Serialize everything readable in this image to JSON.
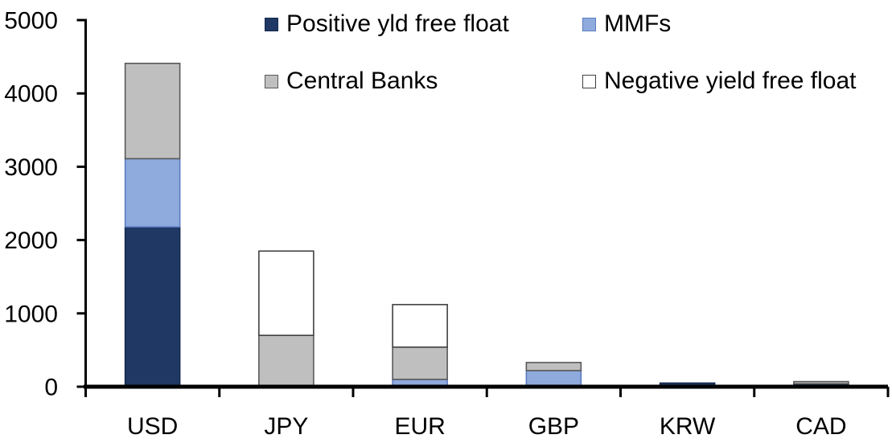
{
  "chart_data": {
    "type": "bar",
    "stacked": true,
    "title": "",
    "xlabel": "",
    "ylabel": "",
    "categories": [
      "USD",
      "JPY",
      "EUR",
      "GBP",
      "KRW",
      "CAD"
    ],
    "series": [
      {
        "name": "Positive yld free float",
        "color": "#1F3864",
        "border": "#152A4E",
        "values": [
          2180,
          0,
          0,
          0,
          50,
          40
        ]
      },
      {
        "name": "MMFs",
        "color": "#8FAADC",
        "border": "#5B7CC0",
        "values": [
          930,
          0,
          100,
          220,
          0,
          0
        ]
      },
      {
        "name": "Central Banks",
        "color": "#BFBFBF",
        "border": "#595959",
        "values": [
          1300,
          700,
          440,
          110,
          0,
          30
        ]
      },
      {
        "name": "Negative yield free float",
        "color": "#FFFFFF",
        "border": "#404040",
        "values": [
          0,
          1150,
          580,
          0,
          0,
          0
        ]
      }
    ],
    "ylim": [
      0,
      5000
    ],
    "ytick_interval": 1000,
    "ytick_labels": [
      "0",
      "1000",
      "2000",
      "3000",
      "4000",
      "5000"
    ],
    "grid": false,
    "legend_position": "top",
    "axis_color": "#000000",
    "background": "#FFFFFF"
  }
}
